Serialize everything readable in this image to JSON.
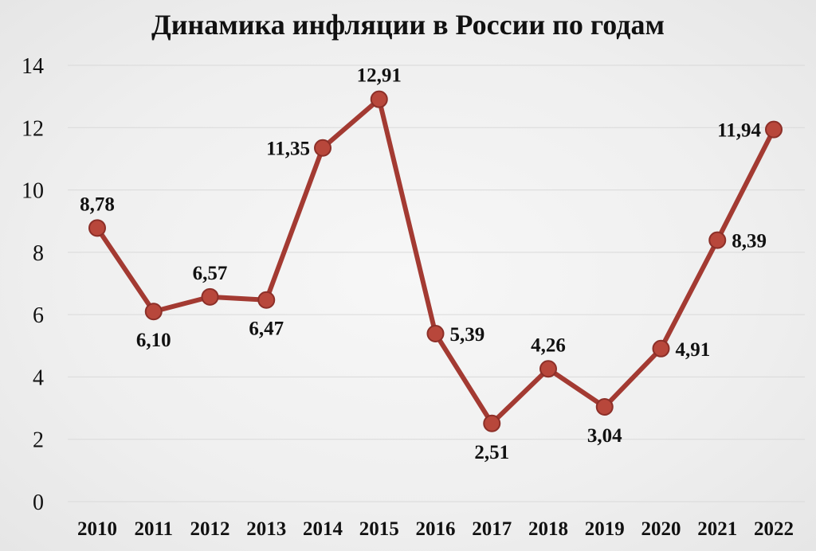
{
  "chart_data": {
    "type": "line",
    "title": "Динамика инфляции в России по годам",
    "xlabel": "",
    "ylabel": "",
    "categories": [
      "2010",
      "2011",
      "2012",
      "2013",
      "2014",
      "2015",
      "2016",
      "2017",
      "2018",
      "2019",
      "2020",
      "2021",
      "2022"
    ],
    "values": [
      8.78,
      6.1,
      6.57,
      6.47,
      11.35,
      12.91,
      5.39,
      2.51,
      4.26,
      3.04,
      4.91,
      8.39,
      11.94
    ],
    "data_labels": [
      "8,78",
      "6,10",
      "6,57",
      "6,47",
      "11,35",
      "12,91",
      "5,39",
      "2,51",
      "4,26",
      "3,04",
      "4,91",
      "8,39",
      "11,94"
    ],
    "label_positions": [
      "above",
      "below",
      "above",
      "below",
      "left",
      "above",
      "right",
      "below",
      "above",
      "below",
      "right",
      "right",
      "left"
    ],
    "ylim": [
      0,
      14
    ],
    "yticks": [
      "0",
      "2",
      "4",
      "6",
      "8",
      "10",
      "12",
      "14"
    ],
    "grid": true,
    "legend": "none",
    "colors": {
      "line": "#a33a32",
      "marker_fill": "#b8473b",
      "marker_stroke": "#8c2f28",
      "grid": "#d9d9d9",
      "text": "#111111"
    }
  }
}
